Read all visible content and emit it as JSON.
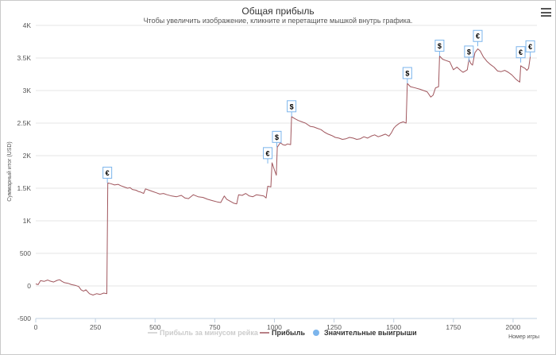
{
  "header": {
    "title": "Общая прибыль",
    "subtitle": "Чтобы увеличить изображение, кликните и перетащите мышкой внутрь графика.",
    "menu_icon": "hamburger-menu-icon"
  },
  "chart_data": {
    "type": "line",
    "title": "Общая прибыль",
    "subtitle": "Чтобы увеличить изображение, кликните и перетащите мышкой внутрь графика.",
    "xlabel": "Номер игры",
    "ylabel": "Суммарный итог (USD)",
    "xlim": [
      0,
      2100
    ],
    "ylim": [
      -500,
      4000
    ],
    "x_ticks": [
      0,
      250,
      500,
      750,
      1000,
      1250,
      1500,
      1750,
      2000
    ],
    "y_ticks": [
      {
        "value": -500,
        "label": "-500"
      },
      {
        "value": 0,
        "label": "0"
      },
      {
        "value": 500,
        "label": "500"
      },
      {
        "value": 1000,
        "label": "1K"
      },
      {
        "value": 1500,
        "label": "1.5K"
      },
      {
        "value": 2000,
        "label": "2K"
      },
      {
        "value": 2500,
        "label": "2.5K"
      },
      {
        "value": 3000,
        "label": "3K"
      },
      {
        "value": 3500,
        "label": "3.5K"
      },
      {
        "value": 4000,
        "label": "4K"
      }
    ],
    "grid": true,
    "line_color": "#a0565d",
    "series": [
      {
        "name": "Прибыль",
        "color": "#a0565d",
        "points": [
          [
            0,
            30
          ],
          [
            10,
            20
          ],
          [
            20,
            80
          ],
          [
            35,
            70
          ],
          [
            50,
            90
          ],
          [
            60,
            75
          ],
          [
            75,
            60
          ],
          [
            90,
            85
          ],
          [
            100,
            95
          ],
          [
            110,
            70
          ],
          [
            120,
            50
          ],
          [
            135,
            40
          ],
          [
            150,
            20
          ],
          [
            165,
            10
          ],
          [
            180,
            -10
          ],
          [
            190,
            -60
          ],
          [
            200,
            -80
          ],
          [
            210,
            -60
          ],
          [
            225,
            -120
          ],
          [
            240,
            -140
          ],
          [
            255,
            -120
          ],
          [
            270,
            -130
          ],
          [
            285,
            -110
          ],
          [
            298,
            -120
          ],
          [
            302,
            1580
          ],
          [
            315,
            1570
          ],
          [
            330,
            1550
          ],
          [
            345,
            1560
          ],
          [
            355,
            1540
          ],
          [
            370,
            1520
          ],
          [
            385,
            1500
          ],
          [
            395,
            1510
          ],
          [
            405,
            1480
          ],
          [
            420,
            1470
          ],
          [
            430,
            1450
          ],
          [
            440,
            1440
          ],
          [
            452,
            1420
          ],
          [
            460,
            1490
          ],
          [
            475,
            1470
          ],
          [
            490,
            1450
          ],
          [
            505,
            1430
          ],
          [
            520,
            1410
          ],
          [
            535,
            1420
          ],
          [
            550,
            1400
          ],
          [
            570,
            1380
          ],
          [
            590,
            1370
          ],
          [
            610,
            1390
          ],
          [
            625,
            1350
          ],
          [
            640,
            1340
          ],
          [
            660,
            1400
          ],
          [
            680,
            1370
          ],
          [
            700,
            1360
          ],
          [
            720,
            1330
          ],
          [
            740,
            1310
          ],
          [
            760,
            1290
          ],
          [
            775,
            1280
          ],
          [
            790,
            1380
          ],
          [
            800,
            1330
          ],
          [
            815,
            1300
          ],
          [
            830,
            1270
          ],
          [
            842,
            1260
          ],
          [
            850,
            1400
          ],
          [
            865,
            1390
          ],
          [
            880,
            1420
          ],
          [
            895,
            1380
          ],
          [
            910,
            1370
          ],
          [
            925,
            1400
          ],
          [
            940,
            1390
          ],
          [
            955,
            1380
          ],
          [
            965,
            1350
          ],
          [
            972,
            1530
          ],
          [
            985,
            1520
          ],
          [
            990,
            1890
          ],
          [
            1000,
            1780
          ],
          [
            1008,
            1700
          ],
          [
            1012,
            2130
          ],
          [
            1025,
            2200
          ],
          [
            1035,
            2170
          ],
          [
            1045,
            2160
          ],
          [
            1055,
            2180
          ],
          [
            1068,
            2170
          ],
          [
            1072,
            2600
          ],
          [
            1085,
            2570
          ],
          [
            1100,
            2540
          ],
          [
            1115,
            2520
          ],
          [
            1130,
            2500
          ],
          [
            1150,
            2450
          ],
          [
            1165,
            2440
          ],
          [
            1180,
            2420
          ],
          [
            1195,
            2400
          ],
          [
            1210,
            2360
          ],
          [
            1225,
            2330
          ],
          [
            1240,
            2310
          ],
          [
            1255,
            2280
          ],
          [
            1270,
            2270
          ],
          [
            1285,
            2250
          ],
          [
            1300,
            2260
          ],
          [
            1315,
            2280
          ],
          [
            1330,
            2270
          ],
          [
            1345,
            2250
          ],
          [
            1360,
            2260
          ],
          [
            1375,
            2290
          ],
          [
            1390,
            2270
          ],
          [
            1405,
            2300
          ],
          [
            1420,
            2320
          ],
          [
            1435,
            2290
          ],
          [
            1450,
            2310
          ],
          [
            1465,
            2330
          ],
          [
            1480,
            2300
          ],
          [
            1490,
            2350
          ],
          [
            1500,
            2420
          ],
          [
            1510,
            2460
          ],
          [
            1525,
            2500
          ],
          [
            1540,
            2520
          ],
          [
            1552,
            2500
          ],
          [
            1557,
            3110
          ],
          [
            1570,
            3060
          ],
          [
            1590,
            3040
          ],
          [
            1610,
            3020
          ],
          [
            1625,
            3000
          ],
          [
            1640,
            2980
          ],
          [
            1655,
            2900
          ],
          [
            1665,
            2930
          ],
          [
            1675,
            3040
          ],
          [
            1688,
            3060
          ],
          [
            1692,
            3530
          ],
          [
            1705,
            3480
          ],
          [
            1720,
            3460
          ],
          [
            1735,
            3440
          ],
          [
            1750,
            3320
          ],
          [
            1765,
            3360
          ],
          [
            1780,
            3310
          ],
          [
            1790,
            3280
          ],
          [
            1800,
            3300
          ],
          [
            1808,
            3320
          ],
          [
            1815,
            3480
          ],
          [
            1822,
            3420
          ],
          [
            1830,
            3390
          ],
          [
            1840,
            3580
          ],
          [
            1852,
            3640
          ],
          [
            1862,
            3610
          ],
          [
            1875,
            3520
          ],
          [
            1890,
            3450
          ],
          [
            1905,
            3400
          ],
          [
            1920,
            3360
          ],
          [
            1935,
            3300
          ],
          [
            1950,
            3290
          ],
          [
            1965,
            3310
          ],
          [
            1980,
            3280
          ],
          [
            1995,
            3240
          ],
          [
            2010,
            3180
          ],
          [
            2020,
            3150
          ],
          [
            2028,
            3130
          ],
          [
            2032,
            3380
          ],
          [
            2040,
            3360
          ],
          [
            2050,
            3340
          ],
          [
            2058,
            3310
          ],
          [
            2065,
            3340
          ],
          [
            2072,
            3520
          ]
        ]
      },
      {
        "name": "Прибыль за минусом рейка",
        "color": "#cccccc",
        "visible": false,
        "points": []
      }
    ],
    "annotations": [
      {
        "x": 300,
        "y": 1580,
        "label": "€",
        "kind": "Значительные выигрыши"
      },
      {
        "x": 972,
        "y": 1880,
        "label": "€",
        "kind": "Значительные выигрыши"
      },
      {
        "x": 1010,
        "y": 2130,
        "label": "$",
        "kind": "Значительные выигрыши"
      },
      {
        "x": 1072,
        "y": 2600,
        "label": "$",
        "kind": "Значительные выигрыши"
      },
      {
        "x": 1557,
        "y": 3110,
        "label": "$",
        "kind": "Значительные выигрыши"
      },
      {
        "x": 1692,
        "y": 3530,
        "label": "$",
        "kind": "Значительные выигрыши"
      },
      {
        "x": 1815,
        "y": 3440,
        "label": "$",
        "kind": "Значительные выигрыши"
      },
      {
        "x": 1852,
        "y": 3680,
        "label": "€",
        "kind": "Значительные выигрыши"
      },
      {
        "x": 2032,
        "y": 3430,
        "label": "€",
        "kind": "Значительные выигрыши"
      },
      {
        "x": 2072,
        "y": 3520,
        "label": "€",
        "kind": "Значительные выигрыши"
      }
    ],
    "legend": {
      "placement": "bottom-center",
      "items": [
        {
          "label": "Прибыль за минусом рейка",
          "symbol": "line",
          "color": "#cccccc",
          "active": false
        },
        {
          "label": "Прибыль",
          "symbol": "line",
          "color": "#a0565d",
          "active": true
        },
        {
          "label": "Значительные выигрыши",
          "symbol": "circle",
          "color": "#7cb5ec",
          "active": true
        }
      ]
    }
  }
}
